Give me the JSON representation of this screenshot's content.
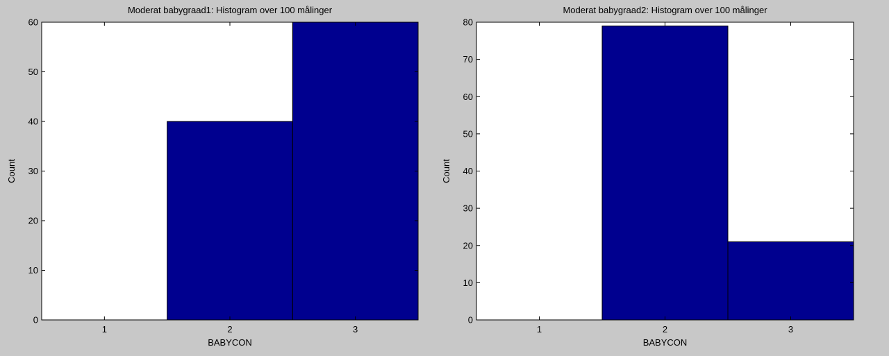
{
  "figure": {
    "background": "#c8c8c8"
  },
  "chart_data": [
    {
      "type": "bar",
      "title": "Moderat babygraad1: Histogram over 100 målinger",
      "xlabel": "BABYCON",
      "ylabel": "Count",
      "categories": [
        "1",
        "2",
        "3"
      ],
      "values": [
        0,
        40,
        60
      ],
      "ylim": [
        0,
        60
      ],
      "yticks": [
        "0",
        "10",
        "20",
        "30",
        "40",
        "50",
        "60"
      ],
      "bar_color": "#00008f",
      "grid": false
    },
    {
      "type": "bar",
      "title": "Moderat babygraad2: Histogram over 100 målinger",
      "xlabel": "BABYCON",
      "ylabel": "Count",
      "categories": [
        "1",
        "2",
        "3"
      ],
      "values": [
        0,
        79,
        21
      ],
      "ylim": [
        0,
        80
      ],
      "yticks": [
        "0",
        "10",
        "20",
        "30",
        "40",
        "50",
        "60",
        "70",
        "80"
      ],
      "bar_color": "#00008f",
      "grid": false
    }
  ]
}
